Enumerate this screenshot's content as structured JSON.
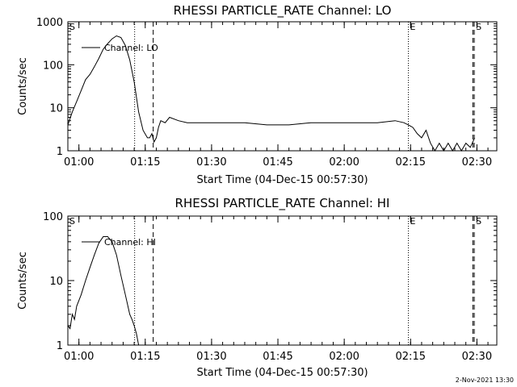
{
  "footer": {
    "timestamp": "2-Nov-2021 13:30"
  },
  "chart_data": [
    {
      "type": "line",
      "title": "RHESSI PARTICLE_RATE Channel: LO",
      "xlabel": "Start Time (04-Dec-15 00:57:30)",
      "ylabel": "Counts/sec",
      "yscale": "log",
      "ylim": [
        1,
        1000
      ],
      "xlim_minutes_after_start": [
        0,
        97
      ],
      "yticks": [
        "1",
        "10",
        "100",
        "1000"
      ],
      "xticks": [
        "01:00",
        "01:15",
        "01:30",
        "01:45",
        "02:00",
        "02:15",
        "02:30"
      ],
      "xtick_minutes_after_start": [
        2.5,
        17.5,
        32.5,
        47.5,
        62.5,
        77.5,
        92.5
      ],
      "legend": {
        "label": "Channel: LO",
        "position": "top-left"
      },
      "markers": [
        {
          "label": "S",
          "x": 0.0,
          "style": "none"
        },
        {
          "label": "",
          "x": 15.1,
          "style": "dotted"
        },
        {
          "label": "",
          "x": 19.3,
          "style": "dashed"
        },
        {
          "label": "E",
          "x": 77.0,
          "style": "dotted"
        },
        {
          "label": "",
          "x": 91.6,
          "style": "dashed"
        },
        {
          "label": "S",
          "x": 91.9,
          "style": "dashed"
        }
      ],
      "series": [
        {
          "name": "Channel: LO",
          "x": [
            0,
            1,
            2,
            3,
            4,
            5,
            6,
            7,
            8,
            9,
            10,
            11,
            12,
            13,
            14,
            15,
            16,
            17,
            18,
            18.5,
            19,
            19.5,
            20,
            20.5,
            21,
            22,
            23,
            25,
            27,
            30,
            33,
            36,
            40,
            45,
            50,
            55,
            60,
            65,
            70,
            74,
            76,
            77,
            78,
            79,
            80,
            81,
            82,
            83,
            84,
            85,
            86,
            87,
            88,
            89,
            90,
            91,
            92
          ],
          "y": [
            4,
            8,
            14,
            25,
            45,
            60,
            90,
            140,
            230,
            310,
            400,
            470,
            430,
            280,
            130,
            40,
            8,
            3,
            2,
            2,
            2.5,
            1.6,
            2,
            3.5,
            5,
            4.5,
            6,
            5,
            4.5,
            4.5,
            4.5,
            4.5,
            4.5,
            4,
            4,
            4.5,
            4.5,
            4.5,
            4.5,
            5,
            4.5,
            4,
            3.5,
            2.5,
            2,
            3,
            1.5,
            1,
            1.5,
            1,
            1.5,
            1,
            1.5,
            1,
            1.5,
            1.2,
            2
          ]
        }
      ]
    },
    {
      "type": "line",
      "title": "RHESSI PARTICLE_RATE Channel: HI",
      "xlabel": "Start Time (04-Dec-15 00:57:30)",
      "ylabel": "Counts/sec",
      "yscale": "log",
      "ylim": [
        1,
        100
      ],
      "xlim_minutes_after_start": [
        0,
        97
      ],
      "yticks": [
        "1",
        "10",
        "100"
      ],
      "xticks": [
        "01:00",
        "01:15",
        "01:30",
        "01:45",
        "02:00",
        "02:15",
        "02:30"
      ],
      "xtick_minutes_after_start": [
        2.5,
        17.5,
        32.5,
        47.5,
        62.5,
        77.5,
        92.5
      ],
      "legend": {
        "label": "Channel: HI",
        "position": "top-left"
      },
      "markers": [
        {
          "label": "S",
          "x": 0.0,
          "style": "none"
        },
        {
          "label": "",
          "x": 15.1,
          "style": "dotted"
        },
        {
          "label": "",
          "x": 19.3,
          "style": "dashed"
        },
        {
          "label": "E",
          "x": 77.0,
          "style": "dotted"
        },
        {
          "label": "",
          "x": 91.6,
          "style": "dashed"
        },
        {
          "label": "S",
          "x": 91.9,
          "style": "dashed"
        }
      ],
      "series": [
        {
          "name": "Channel: HI",
          "x": [
            0,
            0.5,
            1,
            1.5,
            2,
            3,
            4,
            5,
            6,
            7,
            8,
            9,
            10,
            11,
            12,
            13,
            14,
            14.5,
            15,
            15.5,
            16
          ],
          "y": [
            2,
            1.8,
            3,
            2.5,
            4,
            6,
            10,
            16,
            25,
            38,
            48,
            48,
            40,
            25,
            12,
            6,
            3,
            2.5,
            2,
            1.5,
            1
          ]
        }
      ]
    }
  ]
}
